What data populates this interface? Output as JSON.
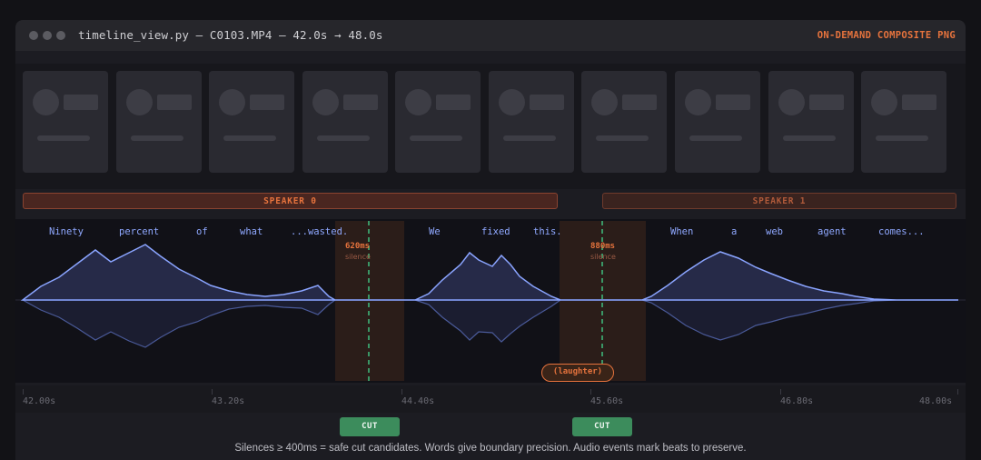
{
  "window": {
    "title": "timeline_view.py — C0103.MP4 — 42.0s → 48.0s",
    "badge": "ON-DEMAND COMPOSITE PNG"
  },
  "speakers": [
    {
      "label": "SPEAKER 0"
    },
    {
      "label": "SPEAKER 1"
    }
  ],
  "words": [
    "Ninety",
    "percent",
    "of",
    "what",
    "...wasted.",
    "We",
    "fixed",
    "this.",
    "When",
    "a",
    "web",
    "agent",
    "comes..."
  ],
  "silences": [
    {
      "duration": "620ms",
      "label": "silence"
    },
    {
      "duration": "880ms",
      "label": "silence"
    }
  ],
  "audio_event": {
    "label": "(laughter)"
  },
  "ruler": {
    "ticks": [
      "42.00s",
      "43.20s",
      "44.40s",
      "45.60s",
      "46.80s",
      "48.00s"
    ]
  },
  "cut_buttons": [
    {
      "label": "CUT"
    },
    {
      "label": "CUT"
    }
  ],
  "footer": "Silences ≥ 400ms = safe cut candidates. Words give boundary precision. Audio events mark beats to preserve.",
  "colors": {
    "accent": "#e6733d",
    "waveform": "#8aa4ff",
    "word_text": "#8fa8ff",
    "cut_button": "#3c8c5c",
    "cut_marker": "#3fbf7f"
  }
}
